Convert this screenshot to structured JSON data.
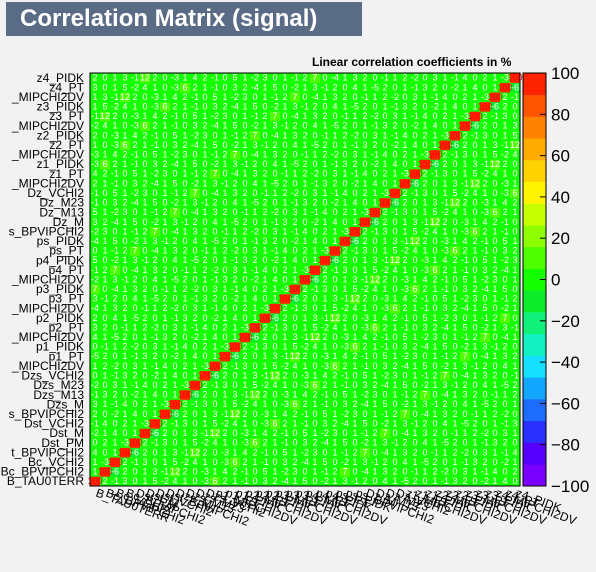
{
  "chart_data": {
    "type": "heatmap",
    "title": "Correlation Matrix (signal)",
    "subtitle": "Linear correlation coefficients in %",
    "variables": [
      "B_TAU0TERR",
      "Bc_BPVIPCHI2",
      "Bc_VCHI2",
      "Bc_BPVIPCHI2",
      "Dst_PM",
      "Dst_M",
      "Dst_VCHI2",
      "Dst_BPVIPCHI2",
      "Dzs_M",
      "Dzs_M13",
      "Dzs_M23",
      "Dzs_VCHI2",
      "p1_MIPCHI2DV",
      "p1_PT",
      "p1_PIDK",
      "p2_MIPCHI2DV",
      "p2_PT",
      "p2_PIDK",
      "p3_MIPCHI2DV",
      "p3_PT",
      "p3_PIDK",
      "p4_MIPCHI2DV",
      "p4_PT",
      "p4_PIDK",
      "ps_PT",
      "ps_PIDK",
      "ps_BPVIPCHI2",
      "Dz_M",
      "Dz_M13",
      "Dz_M23",
      "Dz_VCHI2",
      "z1_MIPCHI2DV",
      "z1_PT",
      "z1_PIDK",
      "z2_MIPCHI2DV",
      "z2_PT",
      "z2_PIDK",
      "z3_MIPCHI2DV",
      "z3_PT",
      "z3_PIDK",
      "z4_MIPCHI2DV",
      "z4_PT",
      "z4_PIDK"
    ],
    "y_tick_labels": [
      "B_TAU0TERR",
      "Bc_BPVIPCHI2",
      "Bc_VCHI2",
      "t_BPVIPCHI2",
      "Dst_PM",
      "Dst_M",
      "Dst_VCHI2",
      "s_BPVIPCHI2",
      "Dzs_M",
      "Dzs_M13",
      "Dzs_M23",
      "Dzs_VCHI2",
      "_MIPCHI2DV",
      "p1_PT",
      "p1_PIDK",
      "_MIPCHI2DV",
      "p2_PT",
      "p2_PIDK",
      "_MIPCHI2DV",
      "p3_PT",
      "p3_PIDK",
      "_MIPCHI2DV",
      "p4_PT",
      "p4_PIDK",
      "ps_PT",
      "ps_PIDK",
      "s_BPVIPCHI2",
      "Dz_M",
      "Dz_M13",
      "Dz_M23",
      "Dz_VCHI2",
      "_MIPCHI2DV",
      "z1_PT",
      "z1_PIDK",
      "_MIPCHI2DV",
      "z2_PT",
      "z2_PIDK",
      "_MIPCHI2DV",
      "z3_PT",
      "z3_PIDK",
      "_MIPCHI2DV",
      "z4_PT",
      "z4_PIDK"
    ],
    "x_tick_labels": [
      "B_TAU0TERR",
      "Bc_BPVIPCHI2",
      "Bc_VCHI2",
      "Bc_BPVIPCHI2",
      "Dst_PM",
      "Dst_M",
      "Dst_VCHI2",
      "Dst_BPVIPCHI2",
      "Dzs_M",
      "Dzs_M13",
      "Dzs_M23",
      "Dzs_VCHI2",
      "p1_MIPCHI2DV",
      "p1_PT",
      "p1_PIDK",
      "p2_MIPCHI2DV",
      "p2_PT",
      "p2_PIDK",
      "p3_MIPCHI2DV",
      "p3_PT",
      "p3_PIDK",
      "p4_MIPCHI2DV",
      "p4_PT",
      "p4_PIDK",
      "ps_PT",
      "ps_PIDK",
      "ps_BPVIPCHI2",
      "Dz_M",
      "Dz_M13",
      "Dz_M23",
      "Dz_VCHI2",
      "z1_MIPCHI2DV",
      "z1_PT",
      "z1_PIDK",
      "z2_MIPCHI2DV",
      "z2_PT",
      "z2_PIDK",
      "z3_MIPCHI2DV",
      "z3_PT",
      "z3_PIDK",
      "z4_MIPCHI2DV",
      "z4_PT",
      "z4_PIDK"
    ],
    "zlim": [
      -100,
      100
    ],
    "colorbar_ticks": [
      100,
      80,
      60,
      40,
      20,
      0,
      -20,
      -40,
      -60,
      -80,
      -100
    ],
    "colorbar_tick_labels": [
      "100",
      "80",
      "60",
      "40",
      "20",
      "0",
      "−20",
      "−40",
      "−60",
      "−80",
      "−100"
    ],
    "diagonal_value": 100,
    "offdiagonal_values": [
      2,
      -1,
      3,
      0,
      1,
      5,
      -2,
      4,
      1,
      0,
      -3,
      6,
      2,
      1,
      -1,
      0,
      3,
      2,
      -4,
      1,
      5,
      0,
      -2,
      1,
      3,
      -1,
      2,
      0,
      4,
      1,
      -5,
      2,
      0,
      1,
      -1,
      3,
      2,
      0,
      -2,
      1,
      4,
      0,
      1,
      -6,
      2,
      0,
      1,
      3,
      -1,
      12,
      2,
      0,
      -3,
      1,
      4,
      2,
      -1,
      0,
      5,
      1,
      -2,
      3,
      0,
      1,
      -1,
      2,
      7,
      0,
      -4,
      1,
      3,
      2,
      0,
      -1,
      1,
      2,
      -2,
      0,
      3,
      1,
      -1,
      4,
      0,
      2,
      1,
      -3
    ],
    "colormap": [
      "#7a00ff",
      "#5500ff",
      "#2a30ff",
      "#1b6cff",
      "#13a6ff",
      "#15e1ff",
      "#12f2c0",
      "#10f07a",
      "#0cec2a",
      "#14ff00",
      "#4dff00",
      "#8dff00",
      "#c6ff00",
      "#fff500",
      "#ffd200",
      "#ffab00",
      "#ff8200",
      "#ff5400",
      "#ff2400"
    ],
    "grid": false,
    "legend": "none",
    "colorbar_position": "right"
  }
}
